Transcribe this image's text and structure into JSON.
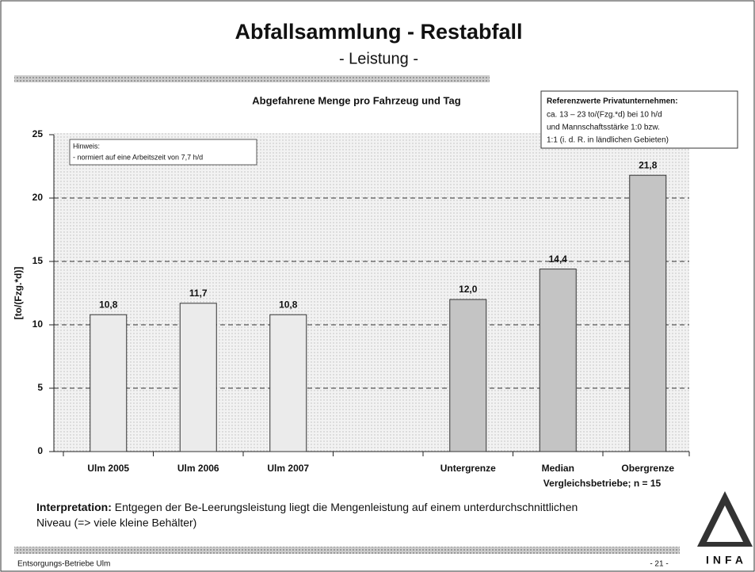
{
  "slide": {
    "title": "Abfallsammlung - Restabfall",
    "subtitle": "- Leistung -",
    "interpretation_label": "Interpretation:",
    "interpretation": [
      "Entgegen der Be-Leerungsleistung liegt die Mengenleistung auf einem unterdurchschnittlichen",
      "Niveau (=> viele kleine Behälter)"
    ],
    "footer": "Entsorgungs-Betriebe Ulm",
    "page": "- 21 -",
    "logo": "INFA"
  },
  "chart_data": {
    "type": "bar",
    "title": "Abgefahrene Menge pro Fahrzeug und Tag",
    "y_label": "[to/(Fzg.*d)]",
    "x_label": "Vergleichsbetriebe; n = 15",
    "note": [
      "Hinweis:",
      "- normiert auf eine Arbeitszeit von 7,7 h/d"
    ],
    "reference": [
      "Referenzwerte Privatunternehmen:",
      "ca. 13 – 23 to/(Fzg.*d) bei 10 h/d",
      "und Mannschaftsstärke 1:0 bzw.",
      "1:1 (i. d. R. in ländlichen Gebieten)"
    ],
    "categories": [
      "Ulm 2005",
      "Ulm 2006",
      "Ulm 2007",
      null,
      "Untergrenze",
      "Median",
      "Obergrenze"
    ],
    "values": [
      10.8,
      11.7,
      10.8,
      null,
      12.0,
      14.4,
      21.8
    ],
    "value_labels": [
      "10,8",
      "11,7",
      "10,8",
      null,
      "12,0",
      "14,4",
      "21,8"
    ],
    "colors": [
      "#ebebeb",
      "#ebebeb",
      "#ebebeb",
      null,
      "#c4c4c4",
      "#c4c4c4",
      "#c4c4c4"
    ],
    "ylim": [
      0,
      25
    ],
    "yticks": [
      0,
      5,
      10,
      15,
      20,
      25
    ],
    "grid": true
  }
}
